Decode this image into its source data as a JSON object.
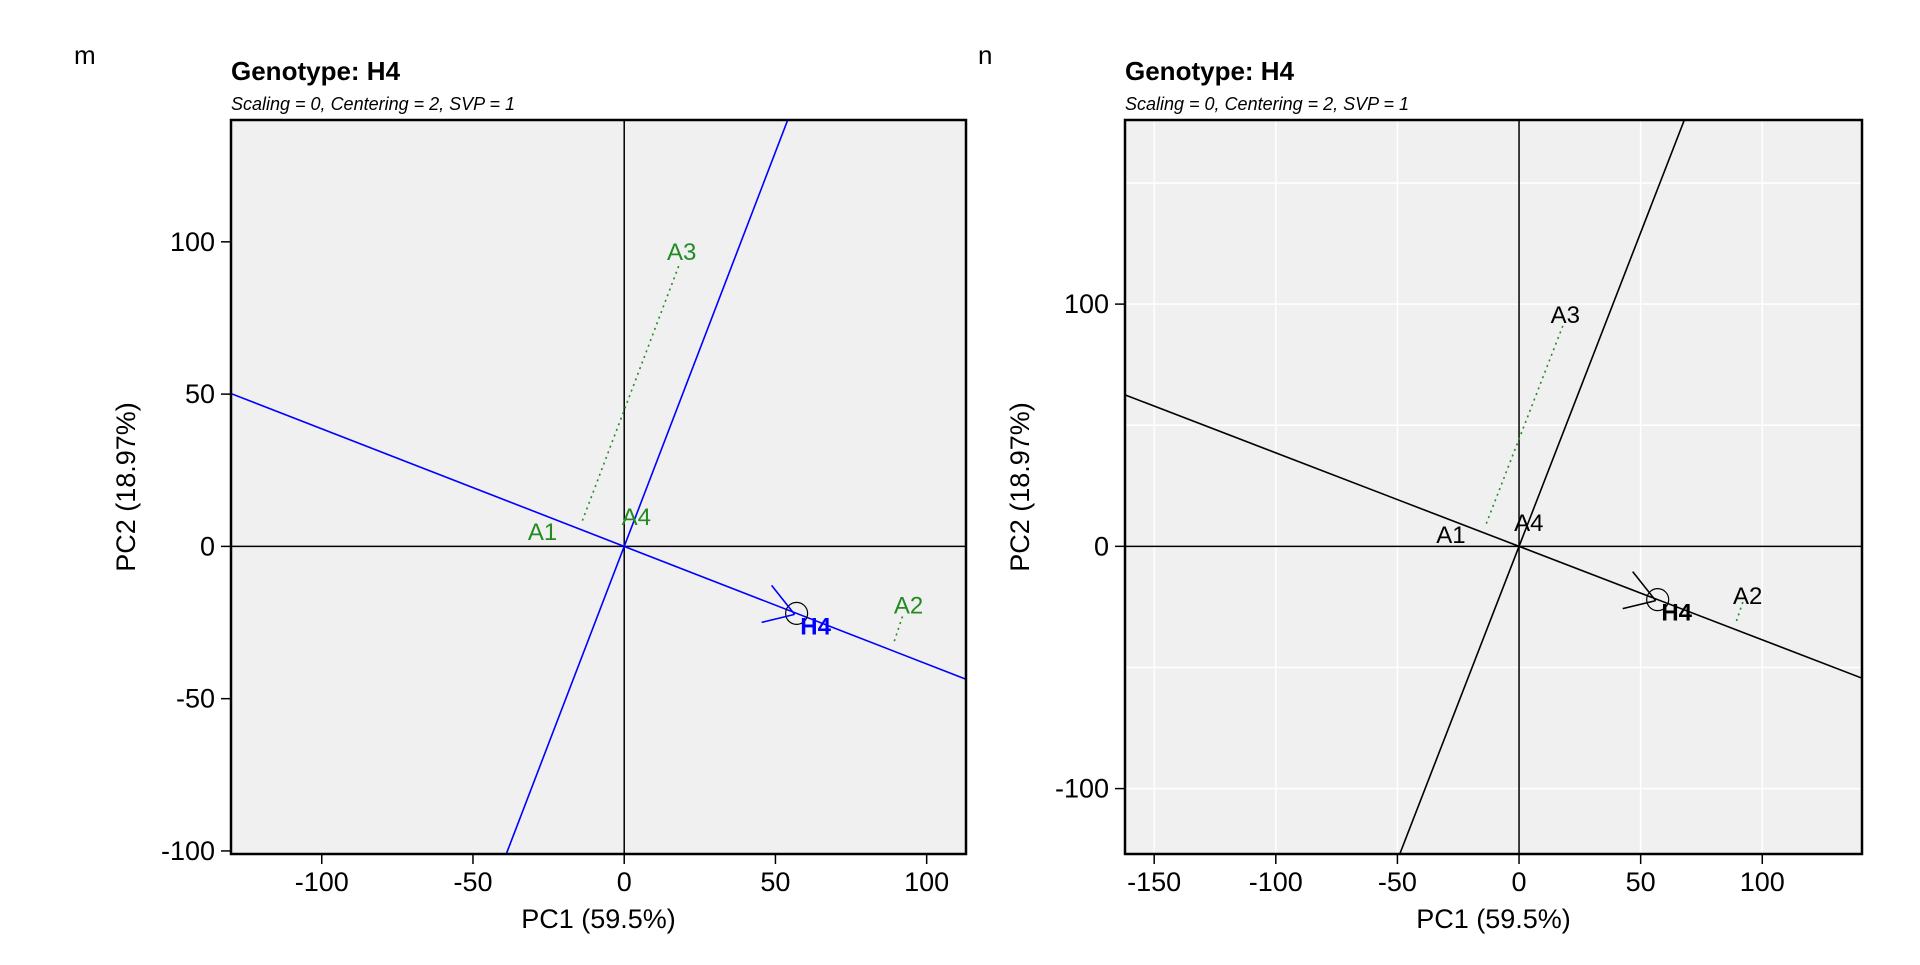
{
  "chart_data": [
    {
      "panel_label": "m",
      "type": "scatter",
      "title": "Genotype: H4",
      "subtitle": "Scaling = 0, Centering = 2, SVP = 1",
      "xlabel": "PC1 (59.5%)",
      "ylabel": "PC2 (18.97%)",
      "xlim": [
        -130,
        113
      ],
      "ylim": [
        -101,
        140
      ],
      "xticks": [
        -100,
        -50,
        0,
        50,
        100
      ],
      "yticks": [
        -100,
        -50,
        0,
        50,
        100
      ],
      "grid": false,
      "colors": {
        "lines": "#0000ff",
        "env_labels": "#228b22",
        "genotype_label": "#0000ff",
        "background": "#f0f0f0"
      },
      "environments": [
        {
          "name": "A1",
          "x": -27,
          "y": 5,
          "proj_from": [
            -14,
            6
          ],
          "proj_to": [
            -14,
            6
          ]
        },
        {
          "name": "A2",
          "x": 94,
          "y": -19,
          "proj_from": [
            92,
            -23
          ],
          "proj_to": [
            89,
            -32
          ]
        },
        {
          "name": "A3",
          "x": 19,
          "y": 97,
          "proj_from": [
            18,
            92
          ],
          "proj_to": [
            -14,
            8
          ]
        },
        {
          "name": "A4",
          "x": 4,
          "y": 10,
          "proj_from": [
            4,
            10
          ],
          "proj_to": [
            4,
            10
          ]
        }
      ],
      "genotype": {
        "name": "H4",
        "x": 57,
        "y": -22
      },
      "genotype_axis_slope": -0.386,
      "perpendicular_slope": 2.59
    },
    {
      "panel_label": "n",
      "type": "scatter",
      "title": "Genotype: H4",
      "subtitle": "Scaling = 0, Centering = 2, SVP = 1",
      "xlabel": "PC1 (59.5%)",
      "ylabel": "PC2 (18.97%)",
      "xlim": [
        -162,
        141
      ],
      "ylim": [
        -127,
        176
      ],
      "xticks": [
        -150,
        -100,
        -50,
        0,
        50,
        100
      ],
      "yticks": [
        -100,
        0,
        100
      ],
      "grid": true,
      "colors": {
        "lines": "#000000",
        "env_labels": "#000000",
        "env_proj": "#228b22",
        "genotype_label": "#000000",
        "background": "#f0f0f0"
      },
      "environments": [
        {
          "name": "A1",
          "x": -28,
          "y": 5,
          "proj_from": [
            -14,
            6
          ],
          "proj_to": [
            -14,
            6
          ]
        },
        {
          "name": "A2",
          "x": 94,
          "y": -20,
          "proj_from": [
            92,
            -23
          ],
          "proj_to": [
            89,
            -32
          ]
        },
        {
          "name": "A3",
          "x": 19,
          "y": 96,
          "proj_from": [
            18,
            91
          ],
          "proj_to": [
            -14,
            8
          ]
        },
        {
          "name": "A4",
          "x": 4,
          "y": 10,
          "proj_from": [
            4,
            10
          ],
          "proj_to": [
            4,
            10
          ]
        }
      ],
      "genotype": {
        "name": "H4",
        "x": 57,
        "y": -22
      },
      "genotype_axis_slope": -0.386,
      "perpendicular_slope": 2.59
    }
  ]
}
